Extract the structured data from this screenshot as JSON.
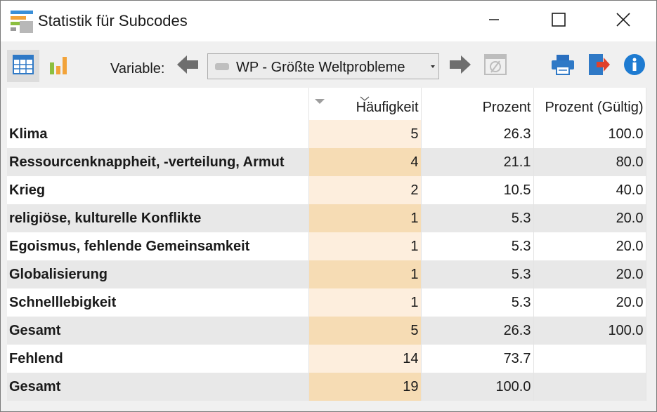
{
  "window": {
    "title": "Statistik für Subcodes",
    "minimize_icon": "minimize-icon",
    "maximize_icon": "maximize-icon",
    "close_icon": "close-icon"
  },
  "toolbar": {
    "table_view_icon": "table-icon",
    "chart_view_icon": "bar-chart-icon",
    "variable_label": "Variable:",
    "prev_icon": "arrow-left-icon",
    "next_icon": "arrow-right-icon",
    "variable_value": "WP - Größte Weltprobleme",
    "empty_filter_icon": "empty-set-icon",
    "print_icon": "printer-icon",
    "export_icon": "export-icon",
    "info_icon": "info-icon"
  },
  "table": {
    "columns": [
      "",
      "Häufigkeit",
      "Prozent",
      "Prozent (Gültig)"
    ],
    "rows": [
      {
        "label": "Klima",
        "freq": "5",
        "pct": "26.3",
        "valid": "100.0"
      },
      {
        "label": "Ressourcenknappheit, -verteilung, Armut",
        "freq": "4",
        "pct": "21.1",
        "valid": "80.0"
      },
      {
        "label": "Krieg",
        "freq": "2",
        "pct": "10.5",
        "valid": "40.0"
      },
      {
        "label": "religiöse, kulturelle Konflikte",
        "freq": "1",
        "pct": "5.3",
        "valid": "20.0"
      },
      {
        "label": "Egoismus, fehlende Gemeinsamkeit",
        "freq": "1",
        "pct": "5.3",
        "valid": "20.0"
      },
      {
        "label": "Globalisierung",
        "freq": "1",
        "pct": "5.3",
        "valid": "20.0"
      },
      {
        "label": "Schnelllebigkeit",
        "freq": "1",
        "pct": "5.3",
        "valid": "20.0"
      },
      {
        "label": "Gesamt",
        "freq": "5",
        "pct": "26.3",
        "valid": "100.0"
      },
      {
        "label": "Fehlend",
        "freq": "14",
        "pct": "73.7",
        "valid": ""
      },
      {
        "label": "Gesamt",
        "freq": "19",
        "pct": "100.0",
        "valid": ""
      }
    ]
  },
  "colors": {
    "freq_light": "#fdeedd",
    "freq_dark": "#f6dcb4",
    "row_alt": "#e8e8e8",
    "accent_blue": "#1e7bd1",
    "export_red": "#e0412b"
  }
}
